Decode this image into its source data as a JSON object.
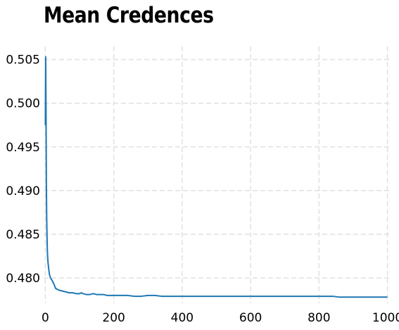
{
  "chart_data": {
    "type": "line",
    "title": "Mean Credences",
    "xlabel": "",
    "ylabel": "",
    "xlim": [
      -5,
      1005
    ],
    "ylim": [
      0.4771,
      0.5065
    ],
    "x_ticks": [
      0,
      200,
      400,
      600,
      800,
      1000
    ],
    "x_tick_labels": [
      "0",
      "200",
      "400",
      "600",
      "800",
      "1000"
    ],
    "y_ticks": [
      0.48,
      0.485,
      0.49,
      0.495,
      0.5,
      0.505
    ],
    "y_tick_labels": [
      "0.480",
      "0.485",
      "0.490",
      "0.495",
      "0.500",
      "0.505"
    ],
    "grid": true,
    "series": [
      {
        "color": "#1f77b4",
        "x": [
          0,
          1,
          2,
          3,
          4,
          5,
          6,
          7,
          8,
          10,
          12,
          15,
          20,
          25,
          30,
          35,
          40,
          50,
          60,
          70,
          80,
          90,
          100,
          105,
          110,
          120,
          130,
          140,
          150,
          160,
          170,
          180,
          200,
          220,
          240,
          260,
          280,
          300,
          320,
          340,
          360,
          380,
          400,
          420,
          440,
          460,
          480,
          500,
          520,
          540,
          560,
          580,
          600,
          620,
          640,
          660,
          680,
          700,
          720,
          740,
          760,
          780,
          800,
          820,
          840,
          860,
          880,
          900,
          920,
          940,
          960,
          980,
          1000
        ],
        "y": [
          0.4975,
          0.5053,
          0.4992,
          0.4905,
          0.4868,
          0.4845,
          0.483,
          0.4822,
          0.4817,
          0.481,
          0.4804,
          0.48,
          0.4797,
          0.4793,
          0.4788,
          0.4787,
          0.4786,
          0.4785,
          0.4784,
          0.4783,
          0.4783,
          0.4782,
          0.4782,
          0.4783,
          0.4782,
          0.4781,
          0.4781,
          0.4782,
          0.4781,
          0.4781,
          0.4781,
          0.478,
          0.478,
          0.478,
          0.478,
          0.4779,
          0.4779,
          0.478,
          0.478,
          0.4779,
          0.4779,
          0.4779,
          0.4779,
          0.4779,
          0.4779,
          0.4779,
          0.4779,
          0.4779,
          0.4779,
          0.4779,
          0.4779,
          0.4779,
          0.4779,
          0.4779,
          0.4779,
          0.4779,
          0.4779,
          0.4779,
          0.4779,
          0.4779,
          0.4779,
          0.4779,
          0.4779,
          0.4779,
          0.4779,
          0.4778,
          0.4778,
          0.4778,
          0.4778,
          0.4778,
          0.4778,
          0.4778,
          0.4778
        ]
      }
    ]
  }
}
